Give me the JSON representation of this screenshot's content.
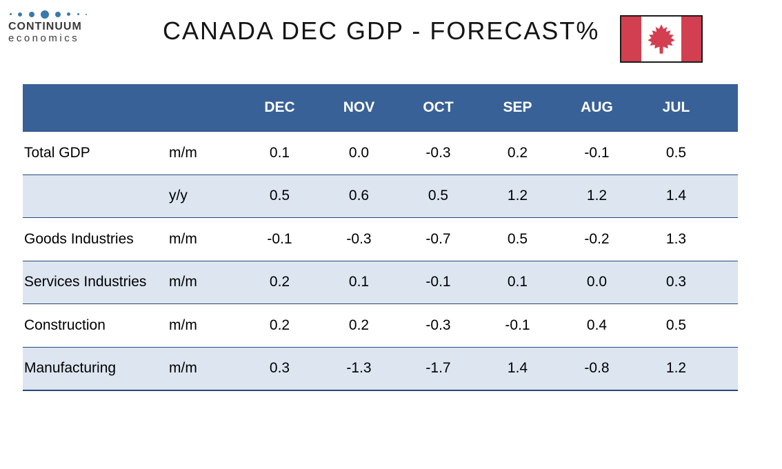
{
  "logo": {
    "line1": "CONTINUUM",
    "line2": "economics"
  },
  "title": "CANADA DEC GDP - FORECAST%",
  "flag": {
    "country": "Canada"
  },
  "colors": {
    "header_bg": "#386197",
    "row_alt_bg": "#dce5f0",
    "border": "#24477c",
    "flag_red": "#d23f50",
    "logo_dot": "#3b79ab"
  },
  "chart_data": {
    "type": "table",
    "title": "CANADA DEC GDP - FORECAST%",
    "units": "%",
    "column_headers": [
      "DEC",
      "NOV",
      "OCT",
      "SEP",
      "AUG",
      "JUL"
    ],
    "rows": [
      {
        "label": "Total GDP",
        "period": "m/m",
        "values": [
          0.1,
          0.0,
          -0.3,
          0.2,
          -0.1,
          0.5
        ]
      },
      {
        "label": "",
        "period": "y/y",
        "values": [
          0.5,
          0.6,
          0.5,
          1.2,
          1.2,
          1.4
        ]
      },
      {
        "label": "Goods Industries",
        "period": "m/m",
        "values": [
          -0.1,
          -0.3,
          -0.7,
          0.5,
          -0.2,
          1.3
        ]
      },
      {
        "label": "Services Industries",
        "period": "m/m",
        "values": [
          0.2,
          0.1,
          -0.1,
          0.1,
          0.0,
          0.3
        ]
      },
      {
        "label": "Construction",
        "period": "m/m",
        "values": [
          0.2,
          0.2,
          -0.3,
          -0.1,
          0.4,
          0.5
        ]
      },
      {
        "label": "Manufacturing",
        "period": "m/m",
        "values": [
          0.3,
          -1.3,
          -1.7,
          1.4,
          -0.8,
          1.2
        ]
      }
    ]
  }
}
